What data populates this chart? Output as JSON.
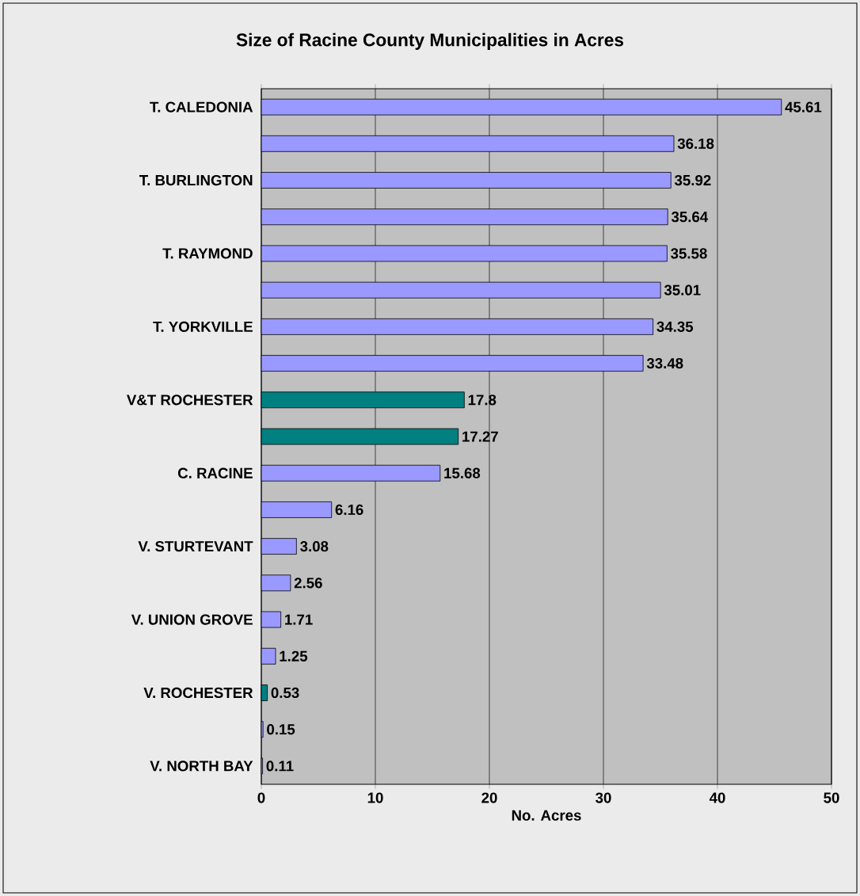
{
  "chart_data": {
    "type": "bar",
    "orientation": "horizontal",
    "title": "Size of Racine County Municipalities in Acres",
    "xlabel": "No. Acres",
    "categories": [
      "T. CALEDONIA",
      null,
      "T. BURLINGTON",
      null,
      "T. RAYMOND",
      null,
      "T. YORKVILLE",
      null,
      "V&T ROCHESTER",
      null,
      "C. RACINE",
      null,
      "V. STURTEVANT",
      null,
      "V. UNION GROVE",
      null,
      "V. ROCHESTER",
      null,
      "V. NORTH BAY"
    ],
    "values": [
      45.61,
      36.18,
      35.92,
      35.64,
      35.58,
      35.01,
      34.35,
      33.48,
      17.8,
      17.27,
      15.68,
      6.16,
      3.08,
      2.56,
      1.71,
      1.25,
      0.53,
      0.15,
      0.11
    ],
    "colors": [
      "#9999ff",
      "#9999ff",
      "#9999ff",
      "#9999ff",
      "#9999ff",
      "#9999ff",
      "#9999ff",
      "#9999ff",
      "#008080",
      "#008080",
      "#9999ff",
      "#9999ff",
      "#9999ff",
      "#9999ff",
      "#9999ff",
      "#9999ff",
      "#008080",
      "#9999ff",
      "#9999ff"
    ],
    "xlim": [
      0,
      50
    ],
    "xticks": [
      0,
      10,
      20,
      30,
      40,
      50
    ],
    "grid": "x",
    "data_labels": true
  }
}
